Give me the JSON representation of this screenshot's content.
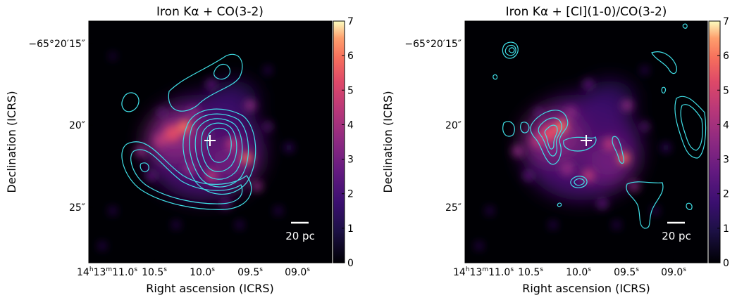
{
  "chart_data": [
    {
      "type": "heatmap",
      "title": "Iron Kα + CO(3-2)",
      "xlabel": "Right ascension (ICRS)",
      "ylabel": "Declination (ICRS)",
      "x_ticks": [
        {
          "pre": "14",
          "sup1": "h",
          "mid": "13",
          "sup2": "m",
          "sec": "11.0",
          "sup3": "s",
          "full": true
        },
        {
          "sec": "10.5",
          "sup3": "s"
        },
        {
          "sec": "10.0",
          "sup3": "s"
        },
        {
          "sec": "09.5",
          "sup3": "s"
        },
        {
          "sec": "09.0",
          "sup3": "s"
        }
      ],
      "y_ticks": [
        "−65°20′15″",
        "20″",
        "25″"
      ],
      "colorbar": {
        "ticks": [
          "0",
          "1",
          "2",
          "3",
          "4",
          "5",
          "6",
          "7"
        ],
        "range": [
          0,
          7
        ],
        "colormap": "magma"
      },
      "scalebar_label": "20 pc",
      "marker": "+",
      "overlay": "CO(3-2) contours"
    },
    {
      "type": "heatmap",
      "title": "Iron Kα + [CI](1-0)/CO(3-2)",
      "xlabel": "Right ascension (ICRS)",
      "ylabel": "Declination (ICRS)",
      "x_ticks": [
        {
          "pre": "14",
          "sup1": "h",
          "mid": "13",
          "sup2": "m",
          "sec": "11.0",
          "sup3": "s",
          "full": true
        },
        {
          "sec": "10.5",
          "sup3": "s"
        },
        {
          "sec": "10.0",
          "sup3": "s"
        },
        {
          "sec": "09.5",
          "sup3": "s"
        },
        {
          "sec": "09.0",
          "sup3": "s"
        }
      ],
      "y_ticks": [
        "−65°20′15″",
        "20″",
        "25″"
      ],
      "colorbar": {
        "ticks": [
          "0",
          "1",
          "2",
          "3",
          "4",
          "5",
          "6",
          "7"
        ],
        "range": [
          0,
          7
        ],
        "colormap": "magma"
      },
      "scalebar_label": "20 pc",
      "marker": "+",
      "overlay": "[CI](1-0)/CO(3-2) ratio contours"
    }
  ],
  "colors": {
    "contour": "#40e0e8",
    "background": "#000004",
    "marker": "#ffffff"
  }
}
